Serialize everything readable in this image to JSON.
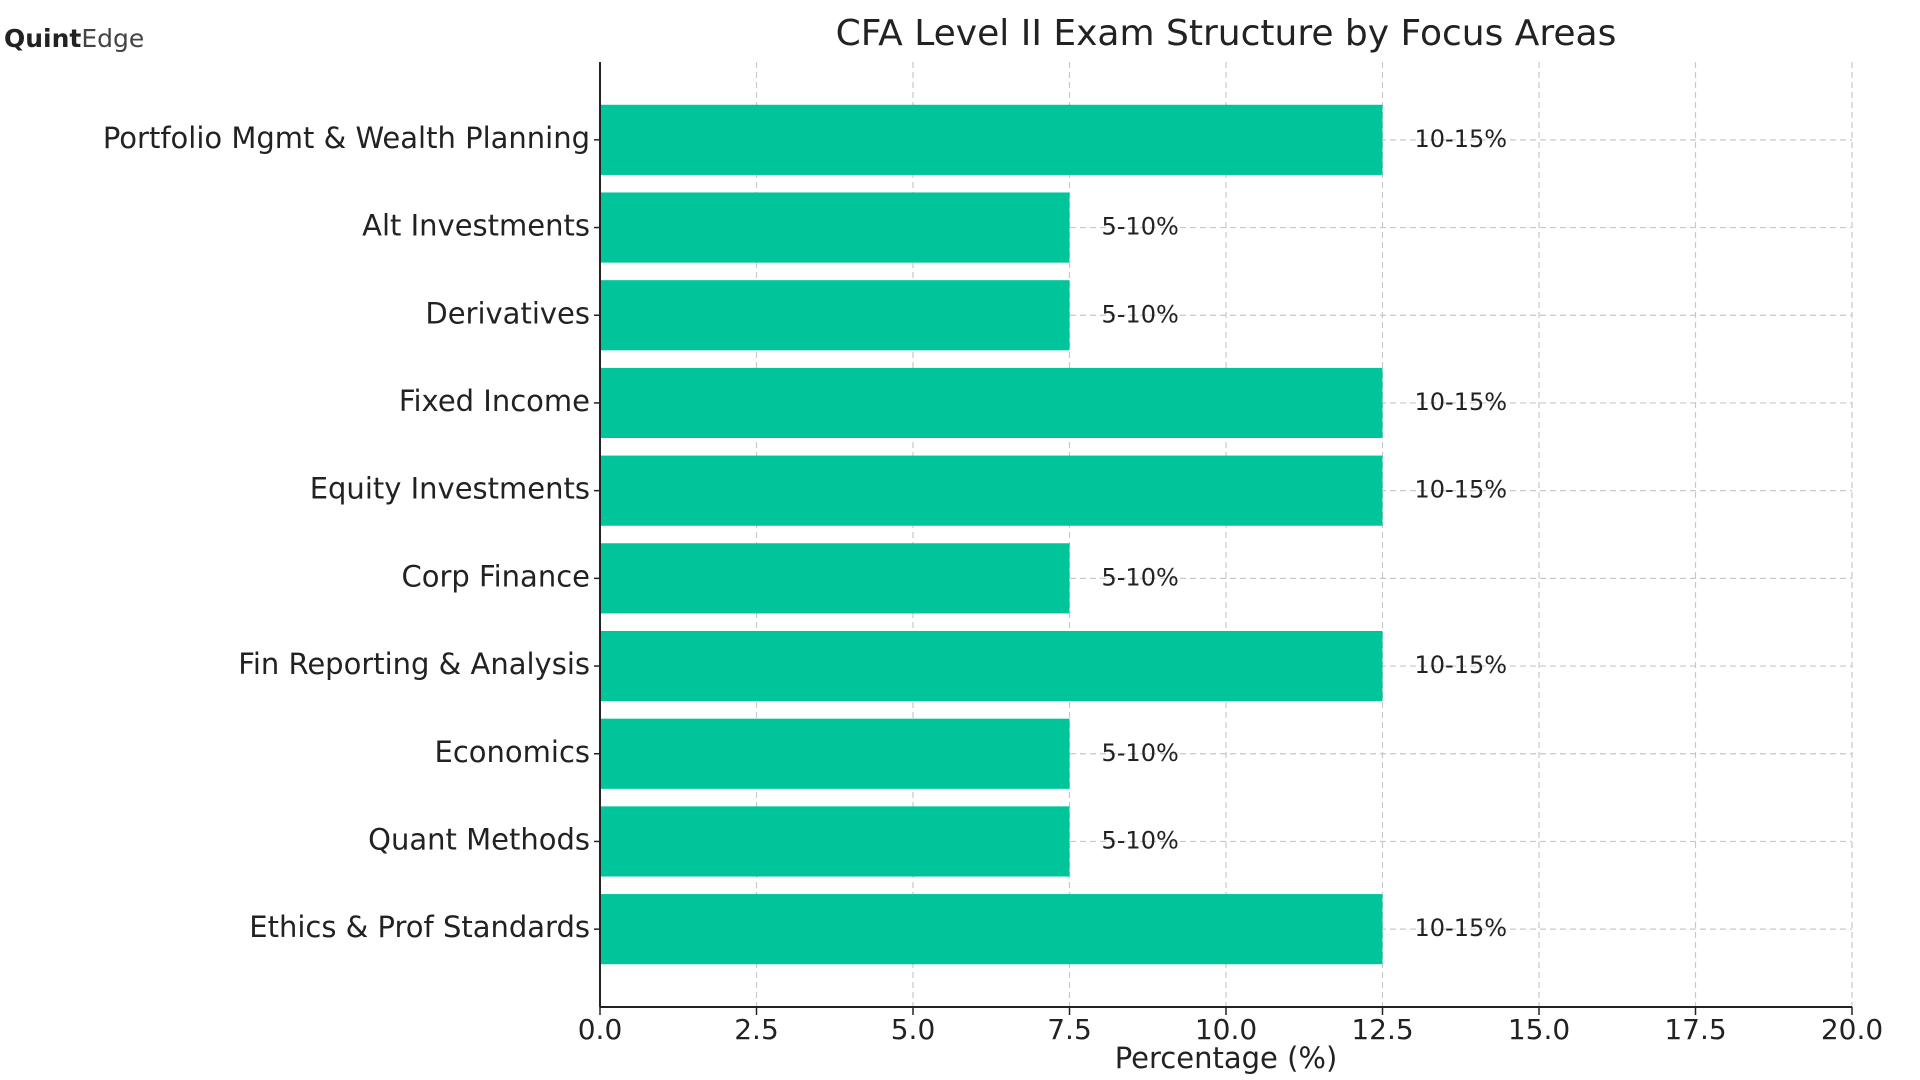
{
  "logo": {
    "strong": "Quint",
    "light": "Edge"
  },
  "chart_data": {
    "type": "barh",
    "title": "CFA Level II Exam Structure by Focus Areas",
    "xlabel": "Percentage (%)",
    "categories": [
      "Portfolio Mgmt & Wealth Planning",
      "Alt Investments",
      "Derivatives",
      "Fixed Income",
      "Equity Investments",
      "Corp Finance",
      "Fin Reporting & Analysis",
      "Economics",
      "Quant Methods",
      "Ethics & Prof Standards"
    ],
    "values": [
      12.5,
      7.5,
      7.5,
      12.5,
      12.5,
      7.5,
      12.5,
      7.5,
      7.5,
      12.5
    ],
    "value_labels": [
      "10-15%",
      "5-10%",
      "5-10%",
      "10-15%",
      "10-15%",
      "5-10%",
      "10-15%",
      "5-10%",
      "5-10%",
      "10-15%"
    ],
    "color": "#00c49a",
    "xlim": [
      0,
      20
    ],
    "xticks": [
      {
        "value": 0,
        "label": "0.0"
      },
      2.5,
      {
        "value": 5,
        "label": "5.0"
      },
      7.5,
      {
        "value": 10,
        "label": "10.0"
      },
      12.5,
      {
        "value": 15,
        "label": "15.0"
      },
      17.5,
      {
        "value": 20,
        "label": "20.0"
      }
    ],
    "grid": true
  }
}
